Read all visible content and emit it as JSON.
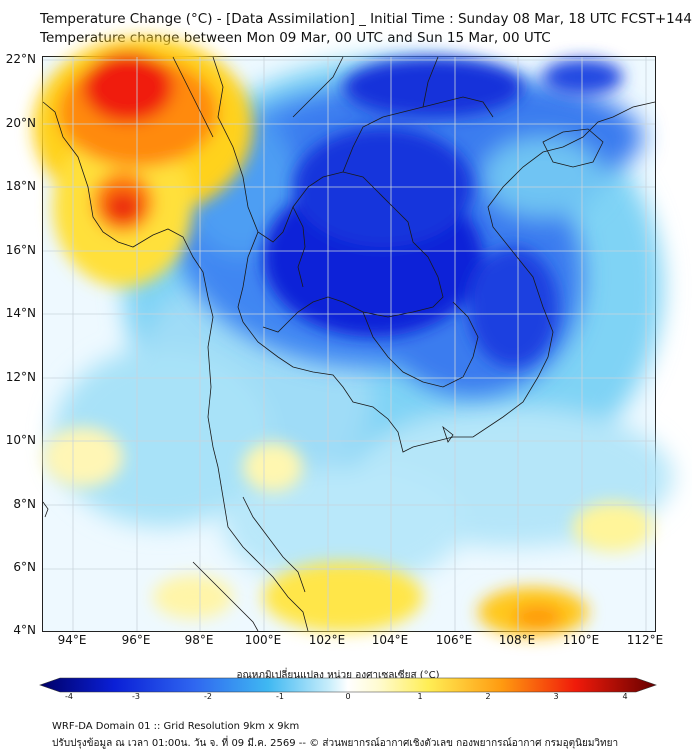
{
  "header": {
    "title_line1": "Temperature Change (°C) - [Data Assimilation] _ Initial Time : Sunday 08 Mar, 18 UTC FCST+144",
    "title_line2": "Temperature change between Mon 09 Mar, 00 UTC and Sun 15 Mar, 00 UTC"
  },
  "axes": {
    "lat_labels": [
      "22°N",
      "20°N",
      "18°N",
      "16°N",
      "14°N",
      "12°N",
      "10°N",
      "8°N",
      "6°N",
      "4°N"
    ],
    "lon_labels": [
      "94°E",
      "96°E",
      "98°E",
      "100°E",
      "102°E",
      "104°E",
      "106°E",
      "108°E",
      "110°E",
      "112°E"
    ]
  },
  "colorbar": {
    "label": "อุณหภูมิเปลี่ยนแปลง หน่วย องศาเซลเซียส (°C)",
    "ticks": [
      "-4",
      "-3",
      "-2",
      "-1",
      "0",
      "1",
      "2",
      "3",
      "4"
    ]
  },
  "footer": {
    "line1": "WRF-DA Domain 01 :: Grid Resolution 9km x 9km",
    "line2": "ปรับปรุงข้อมูล ณ เวลา 01:00น. วัน จ. ที่ 09 มี.ค. 2569 -- © ส่วนพยากรณ์อากาศเชิงตัวเลข กองพยากรณ์อากาศ กรมอุตุนิยมวิทยา"
  },
  "colors": {
    "deep_blue": "#0a1fd6",
    "blue": "#2f66f0",
    "light_blue": "#4fc3f2",
    "pale_blue": "#bfe9fb",
    "yellow": "#ffee55",
    "orange": "#ff9a10",
    "red": "#f01a0a"
  }
}
